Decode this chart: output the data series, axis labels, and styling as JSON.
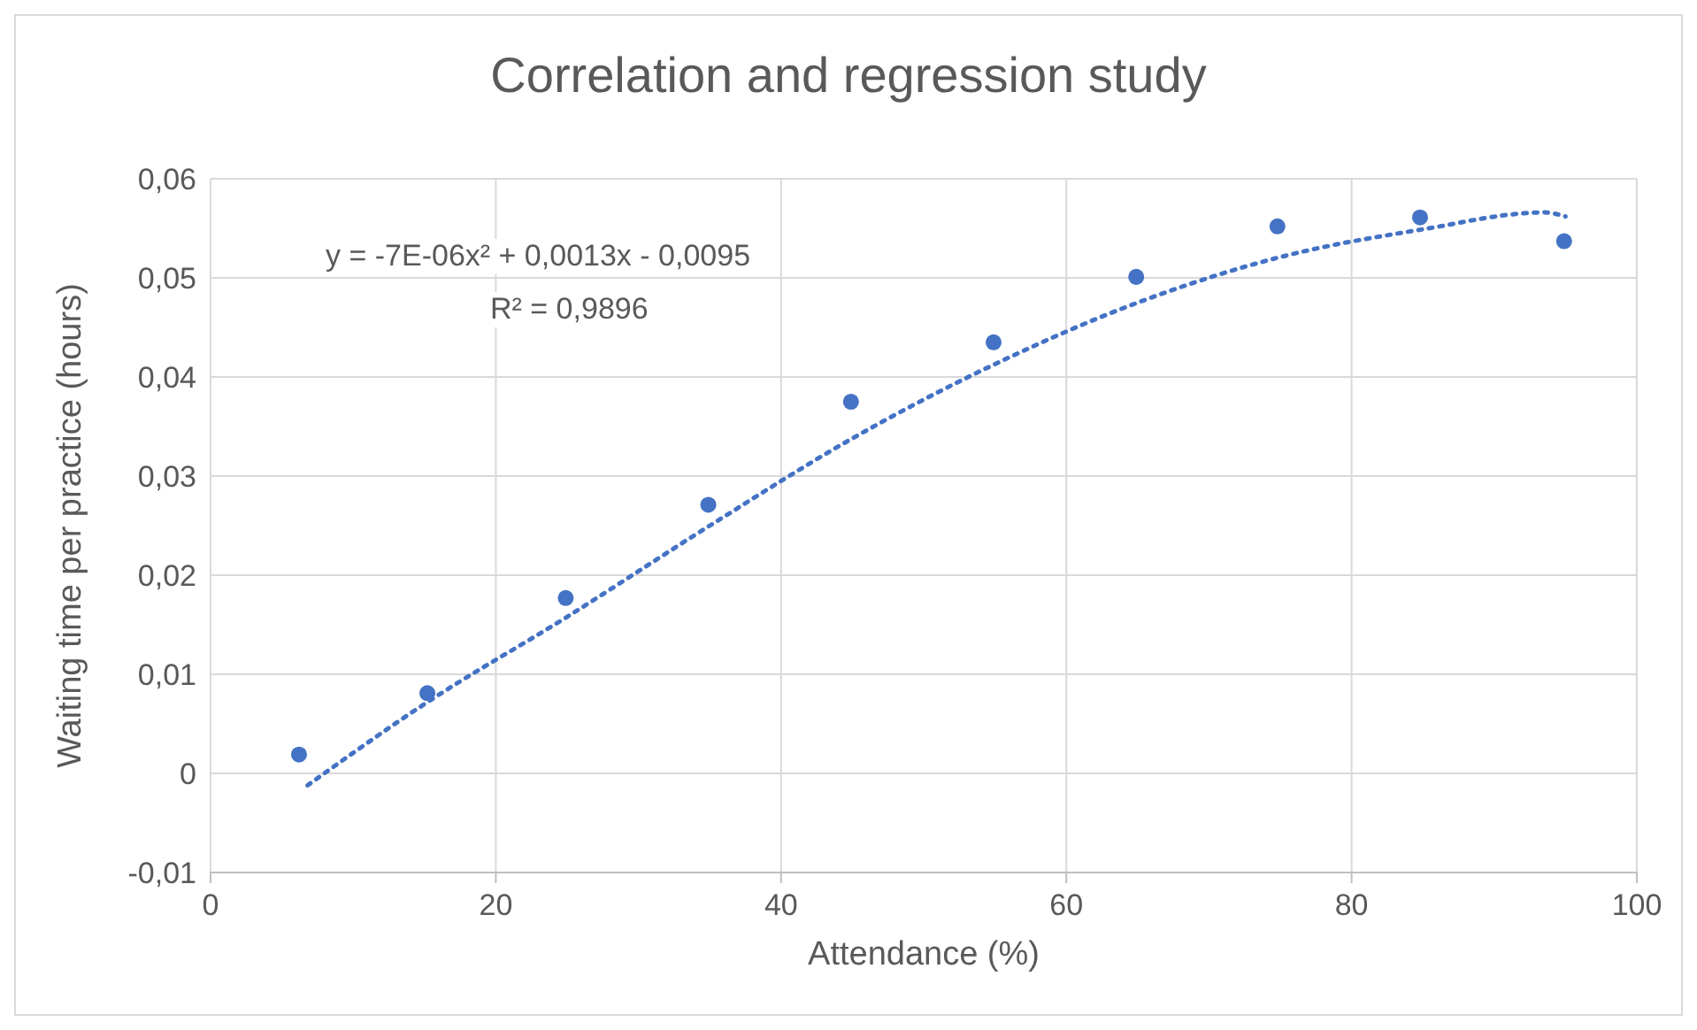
{
  "chart_data": {
    "type": "scatter",
    "title": "Correlation and regression study",
    "xlabel": "Attendance (%)",
    "ylabel": "Waiting time per practice (hours)",
    "xlim": [
      0,
      100
    ],
    "xticks": [
      0,
      20,
      40,
      60,
      80,
      100
    ],
    "ylim": [
      -0.01,
      0.06
    ],
    "yticks": [
      {
        "value": -0.01,
        "label": "-0,01"
      },
      {
        "value": 0,
        "label": "0"
      },
      {
        "value": 0.01,
        "label": "0,01"
      },
      {
        "value": 0.02,
        "label": "0,02"
      },
      {
        "value": 0.03,
        "label": "0,03"
      },
      {
        "value": 0.04,
        "label": "0,04"
      },
      {
        "value": 0.05,
        "label": "0,05"
      },
      {
        "value": 0.06,
        "label": "0,06"
      }
    ],
    "grid": true,
    "series": [
      {
        "color": "#4472c4",
        "marker": "circle",
        "x": [
          6.2,
          15.2,
          24.9,
          34.9,
          44.9,
          54.9,
          64.9,
          74.8,
          84.8,
          94.9
        ],
        "values": [
          0.0019,
          0.0081,
          0.0177,
          0.0271,
          0.0375,
          0.0435,
          0.0501,
          0.0552,
          0.0561,
          0.0537
        ]
      },
      {
        "type": "line",
        "color": "#4472c4",
        "marker": "none",
        "line_style": "dotted",
        "x": [
          6.8,
          15,
          25,
          35,
          45,
          55,
          65,
          75,
          85,
          93.5,
          95
        ],
        "values": [
          -0.0012,
          0.007,
          0.0158,
          0.025,
          0.0338,
          0.0413,
          0.0475,
          0.0521,
          0.0549,
          0.0566,
          0.0562
        ]
      }
    ],
    "annotations": [
      "y = -7E-06x² + 0,0013x - 0,0095",
      "R² = 0,9896"
    ]
  }
}
